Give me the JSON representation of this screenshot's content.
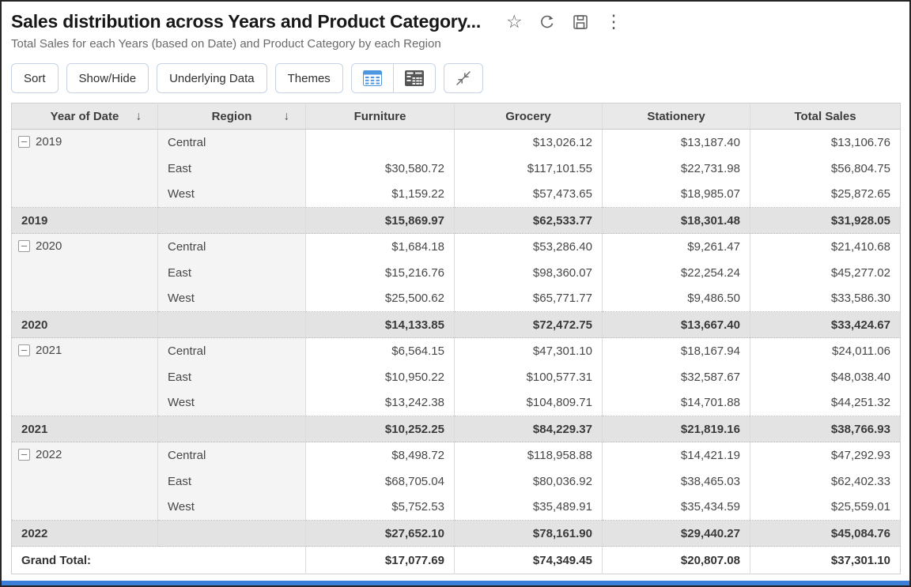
{
  "header": {
    "title": "Sales distribution across Years and Product Category...",
    "subtitle": "Total Sales for each Years (based on Date) and Product Category by each Region"
  },
  "icons": {
    "favorite_glyph": "☆",
    "more_glyph": "⋮",
    "refresh": "refresh-icon",
    "save": "save-icon",
    "table_view": "table-view-icon",
    "pivot_view": "pivot-view-icon",
    "collapse_all": "collapse-all-icon"
  },
  "toolbar": {
    "buttons": [
      "Sort",
      "Show/Hide",
      "Underlying Data",
      "Themes"
    ]
  },
  "table": {
    "columns": [
      "Year of Date",
      "Region",
      "Furniture",
      "Grocery",
      "Stationery",
      "Total Sales"
    ],
    "sort_arrow": "↓",
    "collapse_glyph": "–",
    "groups": [
      {
        "year": "2019",
        "rows": [
          {
            "region": "Central",
            "values": [
              "",
              "$13,026.12",
              "$13,187.40",
              "$13,106.76"
            ]
          },
          {
            "region": "East",
            "values": [
              "$30,580.72",
              "$117,101.55",
              "$22,731.98",
              "$56,804.75"
            ]
          },
          {
            "region": "West",
            "values": [
              "$1,159.22",
              "$57,473.65",
              "$18,985.07",
              "$25,872.65"
            ]
          }
        ],
        "summary": [
          "$15,869.97",
          "$62,533.77",
          "$18,301.48",
          "$31,928.05"
        ]
      },
      {
        "year": "2020",
        "rows": [
          {
            "region": "Central",
            "values": [
              "$1,684.18",
              "$53,286.40",
              "$9,261.47",
              "$21,410.68"
            ]
          },
          {
            "region": "East",
            "values": [
              "$15,216.76",
              "$98,360.07",
              "$22,254.24",
              "$45,277.02"
            ]
          },
          {
            "region": "West",
            "values": [
              "$25,500.62",
              "$65,771.77",
              "$9,486.50",
              "$33,586.30"
            ]
          }
        ],
        "summary": [
          "$14,133.85",
          "$72,472.75",
          "$13,667.40",
          "$33,424.67"
        ]
      },
      {
        "year": "2021",
        "rows": [
          {
            "region": "Central",
            "values": [
              "$6,564.15",
              "$47,301.10",
              "$18,167.94",
              "$24,011.06"
            ]
          },
          {
            "region": "East",
            "values": [
              "$10,950.22",
              "$100,577.31",
              "$32,587.67",
              "$48,038.40"
            ]
          },
          {
            "region": "West",
            "values": [
              "$13,242.38",
              "$104,809.71",
              "$14,701.88",
              "$44,251.32"
            ]
          }
        ],
        "summary": [
          "$10,252.25",
          "$84,229.37",
          "$21,819.16",
          "$38,766.93"
        ]
      },
      {
        "year": "2022",
        "rows": [
          {
            "region": "Central",
            "values": [
              "$8,498.72",
              "$118,958.88",
              "$14,421.19",
              "$47,292.93"
            ]
          },
          {
            "region": "East",
            "values": [
              "$68,705.04",
              "$80,036.92",
              "$38,465.03",
              "$62,402.33"
            ]
          },
          {
            "region": "West",
            "values": [
              "$5,752.53",
              "$35,489.91",
              "$35,434.59",
              "$25,559.01"
            ]
          }
        ],
        "summary": [
          "$27,652.10",
          "$78,161.90",
          "$29,440.27",
          "$45,084.76"
        ]
      }
    ],
    "grand_total": {
      "label": "Grand Total:",
      "values": [
        "$17,077.69",
        "$74,349.45",
        "$20,807.08",
        "$37,301.10"
      ]
    }
  },
  "colors": {
    "scrollbar_blue": "#3c7fd9",
    "accent_blue": "#4d96e0",
    "header_bg": "#e9e9e9",
    "summary_bg": "#e3e3e3",
    "group_bg": "#f4f4f4",
    "button_border": "#c5d3e5"
  }
}
